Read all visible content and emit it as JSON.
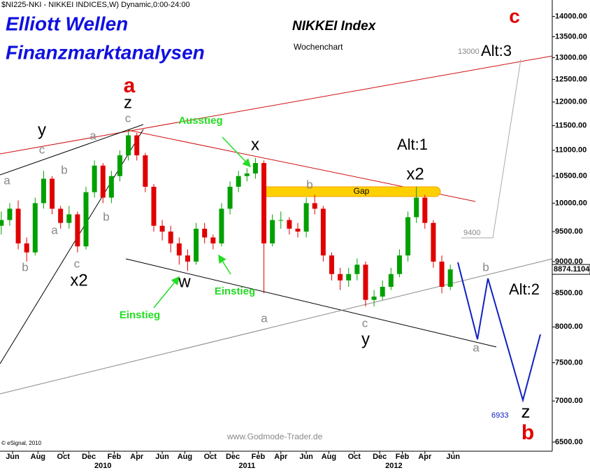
{
  "chart_data": {
    "type": "candlestick",
    "header": "$NI225-NKI - NIKKEI INDICES,W) Dynamic,0:00-24:00",
    "title": "Elliott Wellen",
    "subtitle": "Finanzmarktanalysen",
    "chart_title": "NIKKEI Index",
    "chart_subtitle": "Wochenchart",
    "watermark": "www.Godmode-Trader.de",
    "copyright": "© eSignal, 2010",
    "gap_label": "Gap",
    "log_scale": true,
    "up_color": "#00a000",
    "down_color": "#e00000",
    "x": [
      -4,
      -1,
      2,
      5,
      8,
      11,
      14,
      17,
      20,
      23,
      26,
      29,
      32,
      35,
      38,
      41,
      44,
      47,
      50,
      53,
      56,
      59,
      62,
      65,
      68,
      71,
      74,
      77,
      80,
      83,
      86,
      89,
      92,
      95,
      98,
      101,
      104,
      107,
      110,
      113,
      116,
      119,
      122,
      125,
      128,
      131,
      134,
      137,
      140,
      143,
      146,
      149,
      152,
      155
    ],
    "open": [
      9600,
      9700,
      9900,
      9300,
      9150,
      10000,
      10450,
      9900,
      9650,
      9800,
      9250,
      10200,
      10700,
      10100,
      10500,
      10900,
      11300,
      10900,
      10300,
      9600,
      9500,
      9300,
      9100,
      9000,
      9550,
      9400,
      9300,
      9900,
      10300,
      10500,
      10550,
      10750,
      9300,
      9700,
      9700,
      9550,
      9500,
      10000,
      9900,
      9100,
      8800,
      8700,
      8800,
      8950,
      8400,
      8450,
      8600,
      8800,
      9100,
      9750,
      10100,
      9650,
      9000,
      8600
    ],
    "high": [
      9850,
      10000,
      10050,
      9400,
      10100,
      10600,
      10500,
      9950,
      9950,
      9850,
      10300,
      10800,
      10750,
      10600,
      11000,
      11400,
      11350,
      10950,
      10350,
      9700,
      9600,
      9400,
      9200,
      9650,
      9650,
      9450,
      10000,
      10400,
      10600,
      10650,
      10850,
      10800,
      9800,
      9850,
      9750,
      9650,
      10100,
      10150,
      9950,
      9150,
      8900,
      8900,
      9050,
      9000,
      8550,
      8700,
      8900,
      9200,
      9850,
      10300,
      10150,
      9700,
      9100,
      8950
    ],
    "low": [
      9450,
      9600,
      9200,
      9000,
      9100,
      9900,
      9800,
      9550,
      9550,
      9150,
      9200,
      10100,
      10000,
      10000,
      10400,
      10800,
      10800,
      10200,
      9500,
      9350,
      9150,
      8950,
      8850,
      8950,
      9300,
      9200,
      9250,
      9800,
      10200,
      10400,
      10450,
      8500,
      9250,
      9550,
      9450,
      9400,
      9400,
      9800,
      9000,
      8700,
      8550,
      8600,
      8700,
      8300,
      8300,
      8400,
      8550,
      8750,
      9000,
      9650,
      9550,
      8900,
      8500,
      8550
    ],
    "close": [
      9700,
      9900,
      9300,
      9150,
      10000,
      10450,
      9900,
      9650,
      9800,
      9250,
      10200,
      10700,
      10100,
      10500,
      10900,
      11300,
      10900,
      10300,
      9600,
      9500,
      9300,
      9100,
      9000,
      9550,
      9400,
      9300,
      9900,
      10300,
      10500,
      10550,
      10750,
      9300,
      9700,
      9700,
      9550,
      9500,
      10000,
      9900,
      9100,
      8800,
      8700,
      8800,
      8950,
      8400,
      8450,
      8600,
      8800,
      9100,
      9750,
      10100,
      9650,
      9000,
      8600,
      8874.1104
    ],
    "xlim": [
      -4.45,
      191.1
    ],
    "xticks": [
      {
        "value": 0,
        "label": "Jun"
      },
      {
        "value": 9,
        "label": "Aug"
      },
      {
        "value": 18,
        "label": "Oct"
      },
      {
        "value": 27,
        "label": "Dec"
      },
      {
        "value": 36,
        "label": "Feb"
      },
      {
        "value": 44,
        "label": "Apr"
      },
      {
        "value": 53,
        "label": "Jun"
      },
      {
        "value": 61,
        "label": "Aug"
      },
      {
        "value": 70,
        "label": "Oct"
      },
      {
        "value": 78,
        "label": "Dec"
      },
      {
        "value": 87,
        "label": "Feb"
      },
      {
        "value": 95,
        "label": "Apr"
      },
      {
        "value": 104,
        "label": "Jun"
      },
      {
        "value": 112,
        "label": "Aug"
      },
      {
        "value": 121,
        "label": "Oct"
      },
      {
        "value": 130,
        "label": "Dec"
      },
      {
        "value": 138,
        "label": "Feb"
      },
      {
        "value": 146,
        "label": "Apr"
      },
      {
        "value": 156,
        "label": "Jun"
      }
    ],
    "year_ticks": [
      {
        "value": 32,
        "label": "2010"
      },
      {
        "value": 83,
        "label": "2011"
      },
      {
        "value": 135,
        "label": "2012"
      }
    ],
    "ylim": [
      6394,
      14423
    ],
    "yticks": [
      {
        "value": 6500,
        "label": "6500.00"
      },
      {
        "value": 7000,
        "label": "7000.00"
      },
      {
        "value": 7500,
        "label": "7500.00"
      },
      {
        "value": 8000,
        "label": "8000.00"
      },
      {
        "value": 8500,
        "label": "8500.00"
      },
      {
        "value": 9000,
        "label": "9000.00"
      },
      {
        "value": 9500,
        "label": "9500.00"
      },
      {
        "value": 10000,
        "label": "10000.00"
      },
      {
        "value": 10500,
        "label": "10500.00"
      },
      {
        "value": 11000,
        "label": "11000.00"
      },
      {
        "value": 11500,
        "label": "11500.00"
      },
      {
        "value": 12000,
        "label": "12000.00"
      },
      {
        "value": 12500,
        "label": "12500.00"
      },
      {
        "value": 13000,
        "label": "13000.00"
      },
      {
        "value": 13500,
        "label": "13500.00"
      },
      {
        "value": 14000,
        "label": "14000.00"
      }
    ],
    "price_labels": [
      13000,
      9400,
      6933
    ],
    "labels": [
      "c",
      "Alt:3",
      "a",
      "z",
      "c",
      "y",
      "c",
      "a",
      "a",
      "b",
      "a",
      "b",
      "b",
      "c",
      "x2",
      "Ausstieg",
      "x",
      "Alt:1",
      "x2",
      "b",
      "w",
      "Einstieg",
      "Einstieg",
      "a",
      "c",
      "y",
      "b",
      "Alt:2",
      "a",
      "z",
      "b"
    ]
  }
}
